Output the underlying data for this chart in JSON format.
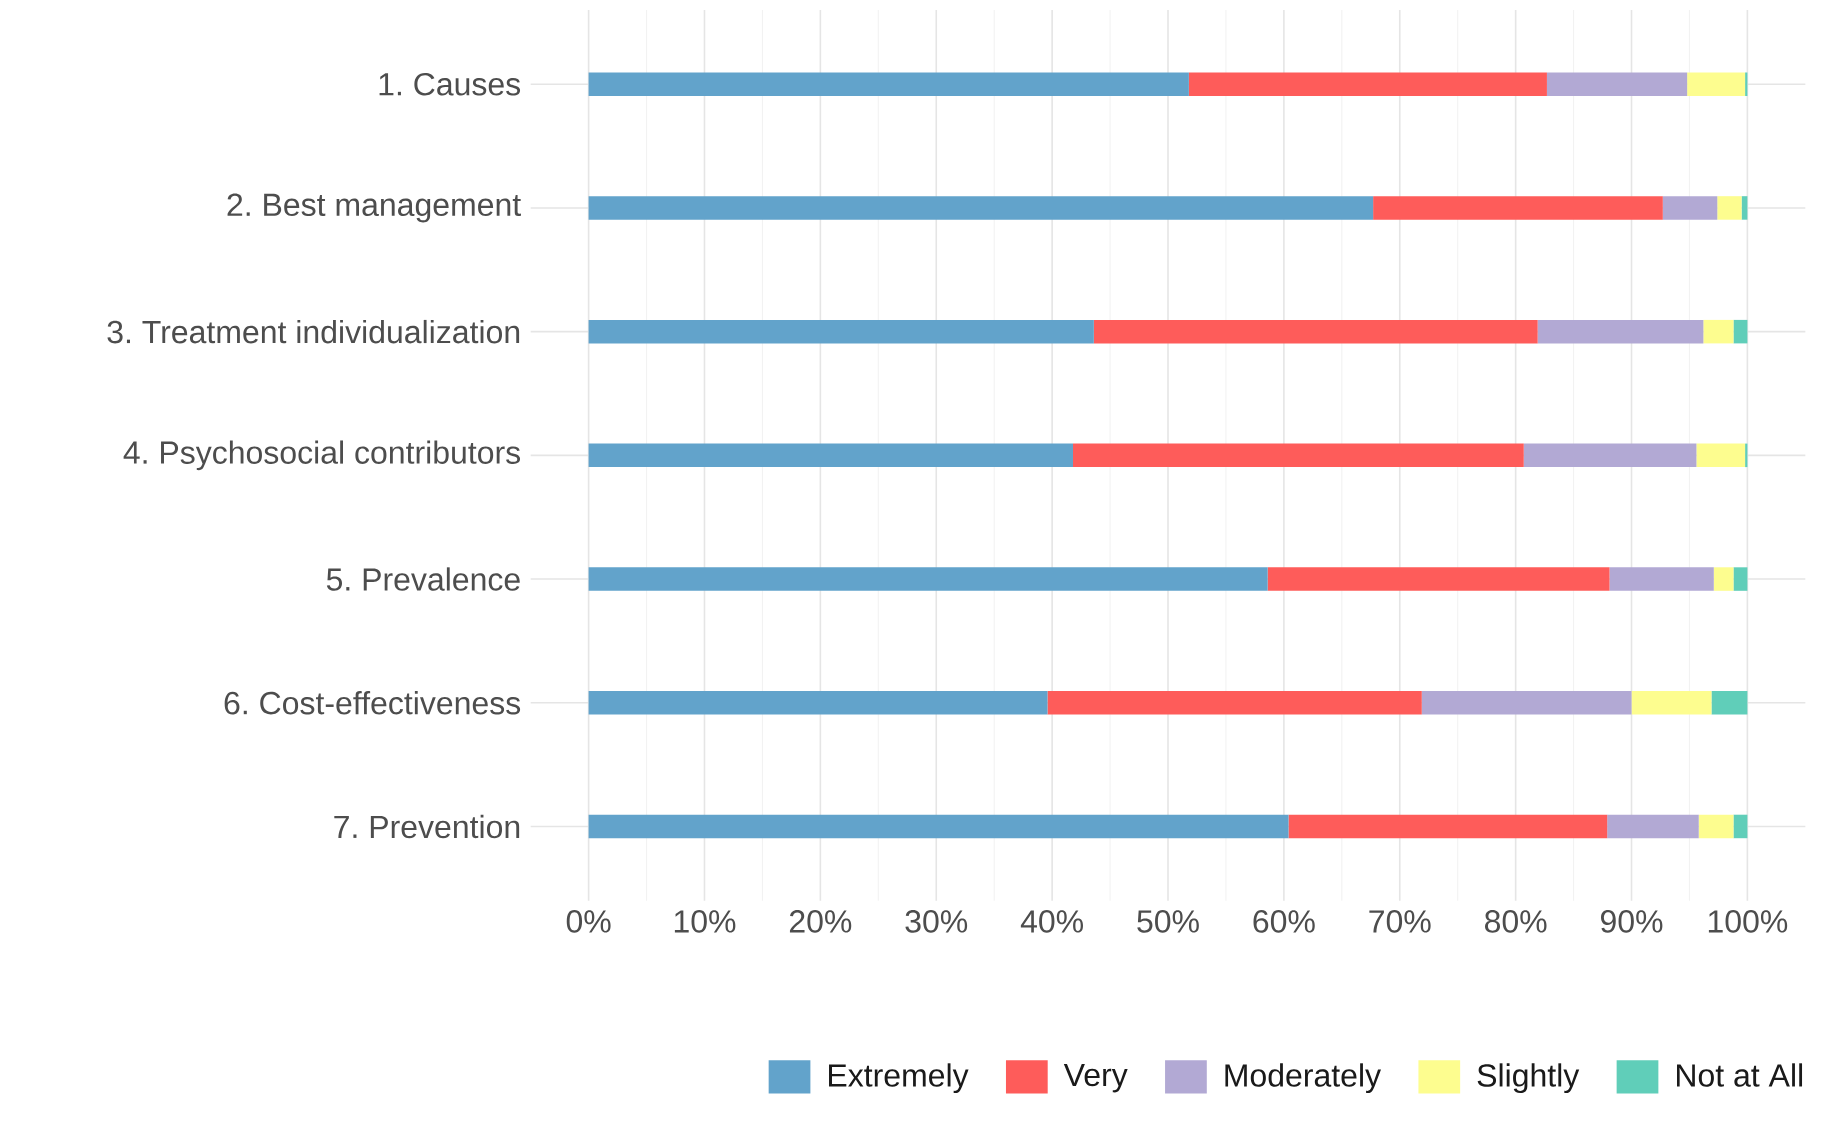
{
  "chart_data": {
    "type": "bar",
    "orientation": "horizontal",
    "stacked": true,
    "categories": [
      "1. Causes",
      "2. Best management",
      "3. Treatment individualization",
      "4. Psychosocial contributors",
      "5. Prevalence",
      "6. Cost-effectiveness",
      "7. Prevention"
    ],
    "series": [
      {
        "name": "Extremely",
        "color": "#62a3cb",
        "values": [
          51.8,
          67.7,
          43.6,
          41.8,
          58.6,
          39.6,
          60.4
        ]
      },
      {
        "name": "Very",
        "color": "#fe5c5a",
        "values": [
          30.9,
          25.0,
          38.3,
          38.9,
          29.5,
          32.3,
          27.5
        ]
      },
      {
        "name": "Moderately",
        "color": "#b2a9d4",
        "values": [
          12.1,
          4.7,
          14.3,
          14.9,
          9.0,
          18.1,
          7.9
        ]
      },
      {
        "name": "Slightly",
        "color": "#fdfd8f",
        "values": [
          5.0,
          2.1,
          2.6,
          4.2,
          1.7,
          6.9,
          3.0
        ]
      },
      {
        "name": "Not at All",
        "color": "#60ceb9",
        "values": [
          0.2,
          0.5,
          1.2,
          0.2,
          1.2,
          3.1,
          1.2
        ]
      }
    ],
    "xlim": [
      -5,
      105
    ],
    "xticks": [
      {
        "value": 0,
        "label": "0%"
      },
      {
        "value": 10,
        "label": "10%"
      },
      {
        "value": 20,
        "label": "20%"
      },
      {
        "value": 30,
        "label": "30%"
      },
      {
        "value": 40,
        "label": "40%"
      },
      {
        "value": 50,
        "label": "50%"
      },
      {
        "value": 60,
        "label": "60%"
      },
      {
        "value": 70,
        "label": "70%"
      },
      {
        "value": 80,
        "label": "80%"
      },
      {
        "value": 90,
        "label": "90%"
      },
      {
        "value": 100,
        "label": "100%"
      }
    ],
    "grid": true,
    "legend": "bottom"
  }
}
